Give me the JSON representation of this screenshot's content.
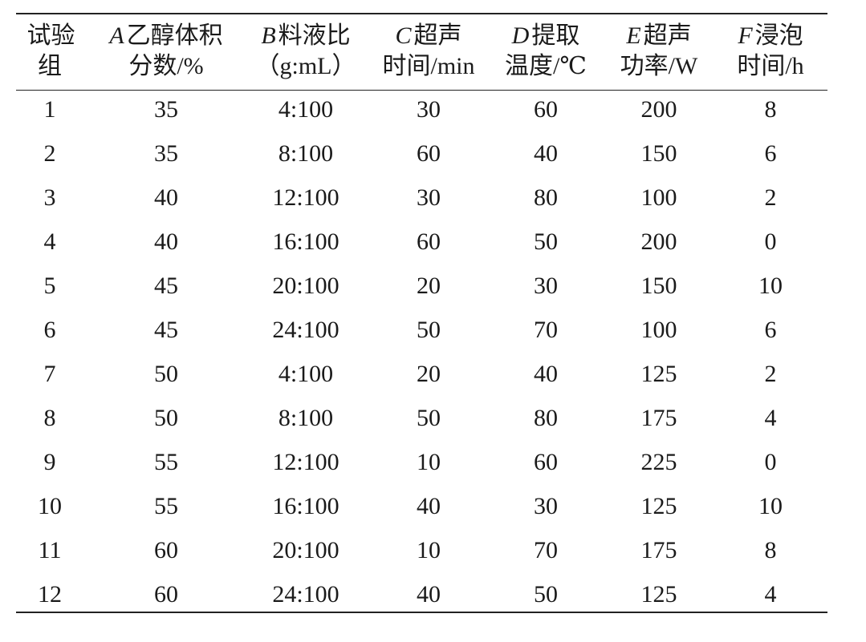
{
  "table": {
    "columns": [
      {
        "letter": "",
        "line1": "试验",
        "line2": "组"
      },
      {
        "letter": "A",
        "line1": "乙醇体积",
        "line2": "分数/%"
      },
      {
        "letter": "B",
        "line1": "料液比",
        "line2": "（g:mL）"
      },
      {
        "letter": "C",
        "line1": "超声",
        "line2": "时间/min"
      },
      {
        "letter": "D",
        "line1": "提取",
        "line2": "温度/℃"
      },
      {
        "letter": "E",
        "line1": "超声",
        "line2": "功率/W"
      },
      {
        "letter": "F",
        "line1": "浸泡",
        "line2": "时间/h"
      }
    ],
    "rows": [
      [
        "1",
        "35",
        "4:100",
        "30",
        "60",
        "200",
        "8"
      ],
      [
        "2",
        "35",
        "8:100",
        "60",
        "40",
        "150",
        "6"
      ],
      [
        "3",
        "40",
        "12:100",
        "30",
        "80",
        "100",
        "2"
      ],
      [
        "4",
        "40",
        "16:100",
        "60",
        "50",
        "200",
        "0"
      ],
      [
        "5",
        "45",
        "20:100",
        "20",
        "30",
        "150",
        "10"
      ],
      [
        "6",
        "45",
        "24:100",
        "50",
        "70",
        "100",
        "6"
      ],
      [
        "7",
        "50",
        "4:100",
        "20",
        "40",
        "125",
        "2"
      ],
      [
        "8",
        "50",
        "8:100",
        "50",
        "80",
        "175",
        "4"
      ],
      [
        "9",
        "55",
        "12:100",
        "10",
        "60",
        "225",
        "0"
      ],
      [
        "10",
        "55",
        "16:100",
        "40",
        "30",
        "125",
        "10"
      ],
      [
        "11",
        "60",
        "20:100",
        "10",
        "70",
        "175",
        "8"
      ],
      [
        "12",
        "60",
        "24:100",
        "40",
        "50",
        "125",
        "4"
      ]
    ]
  }
}
